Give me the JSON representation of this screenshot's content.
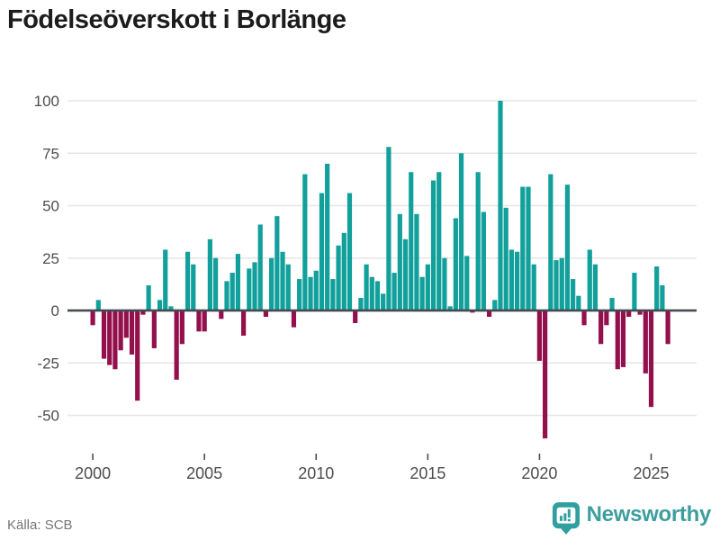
{
  "title": "Födelseöverskott i Borlänge",
  "footer": {
    "source": "Källa: SCB",
    "brand": "Newsworthy"
  },
  "colors": {
    "positive_bar": "#11a09b",
    "negative_bar": "#94104c",
    "zero_axis": "#434a50",
    "gridline": "#e6e6e6",
    "tick_label": "#4d4d4d",
    "brand_teal": "#3d9e9e"
  },
  "chart_data": {
    "type": "bar",
    "title": "Födelseöverskott i Borlänge",
    "frequency": "quarterly",
    "start_year": 2000,
    "end_year": 2025,
    "x_tick_labels": [
      "2000",
      "2005",
      "2010",
      "2015",
      "2020",
      "2025"
    ],
    "y_ticks": [
      100,
      75,
      50,
      25,
      0,
      -25,
      -50
    ],
    "y_tick_labels": [
      "100",
      "75",
      "50",
      "25",
      "0",
      "-25",
      "-50"
    ],
    "ylim": [
      -65,
      105
    ],
    "grid": "horizontal",
    "legend": "none",
    "source": "SCB",
    "values": [
      -7,
      5,
      -23,
      -26,
      -28,
      -19,
      -13,
      -21,
      -43,
      -2,
      12,
      -18,
      5,
      29,
      2,
      -33,
      -16,
      28,
      22,
      -10,
      -10,
      34,
      25,
      -4,
      14,
      18,
      27,
      -12,
      20,
      23,
      41,
      -3,
      25,
      45,
      28,
      22,
      -8,
      15,
      65,
      16,
      19,
      56,
      70,
      15,
      31,
      37,
      56,
      -6,
      6,
      22,
      16,
      14,
      8,
      78,
      18,
      46,
      34,
      66,
      46,
      16,
      22,
      62,
      66,
      25,
      2,
      44,
      75,
      26,
      -1,
      66,
      47,
      -3,
      5,
      100,
      49,
      29,
      28,
      59,
      59,
      22,
      -24,
      -61,
      65,
      24,
      25,
      60,
      15,
      7,
      -7,
      29,
      22,
      -16,
      -7,
      6,
      -28,
      -27,
      -3,
      18,
      -2,
      -30,
      -46,
      21,
      12,
      -16
    ]
  }
}
